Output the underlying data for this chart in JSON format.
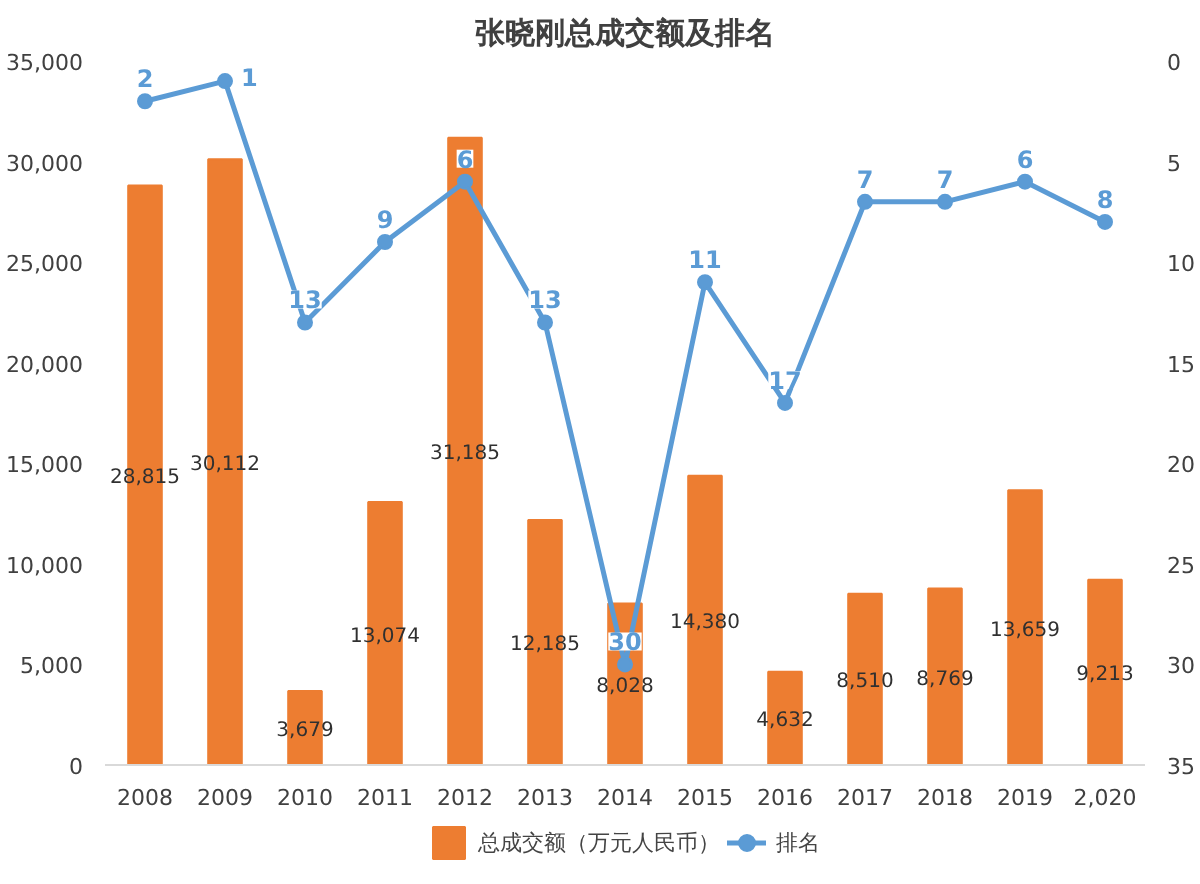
{
  "chart_data": {
    "type": "bar",
    "title": "张晓刚总成交额及排名",
    "categories": [
      "2008",
      "2009",
      "2010",
      "2011",
      "2012",
      "2013",
      "2014",
      "2015",
      "2016",
      "2017",
      "2018",
      "2019",
      "2,020"
    ],
    "series": [
      {
        "name": "总成交额（万元人民币）",
        "color": "#ed7d31",
        "values": [
          28815,
          30112,
          3679,
          13074,
          31185,
          12185,
          8028,
          14380,
          4632,
          8510,
          8769,
          13659,
          9213
        ],
        "value_labels": [
          "28,815",
          "30,112",
          "3,679",
          "13,074",
          "31,185",
          "12,185",
          "8,028",
          "14,380",
          "4,632",
          "8,510",
          "8,769",
          "13,659",
          "9,213"
        ]
      },
      {
        "name": "排名",
        "type": "line",
        "axis": "y2",
        "color": "#5b9bd5",
        "marker": "circle",
        "values": [
          2,
          1,
          13,
          9,
          6,
          13,
          30,
          11,
          17,
          7,
          7,
          6,
          8
        ]
      }
    ],
    "ylim": [
      0,
      35000
    ],
    "yticks": [
      0,
      {
        "value": 5000,
        "label": "5,000"
      },
      {
        "value": 10000,
        "label": "10,000"
      },
      {
        "value": 15000,
        "label": "15,000"
      },
      {
        "value": 20000,
        "label": "20,000"
      },
      {
        "value": 25000,
        "label": "25,000"
      },
      {
        "value": 30000,
        "label": "30,000"
      },
      {
        "value": 35000,
        "label": "35,000"
      }
    ],
    "y2lim": [
      35,
      0
    ],
    "y2ticks": [
      0,
      5,
      10,
      15,
      20,
      25,
      30,
      35
    ],
    "data_labels": true,
    "legend": "bottom",
    "grid": false
  }
}
